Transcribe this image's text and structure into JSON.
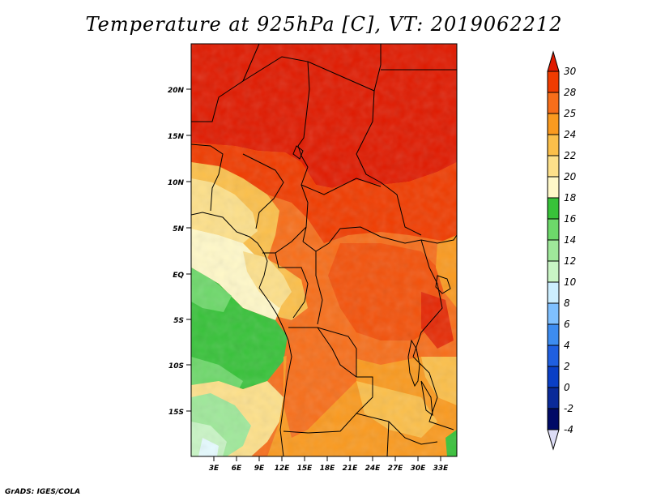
{
  "title": "Temperature at 925hPa [C], VT: 2019062212",
  "credit": "GrADS: IGES/COLA",
  "map": {
    "lat_labels": [
      "20N",
      "15N",
      "10N",
      "5N",
      "EQ",
      "5S",
      "10S",
      "15S"
    ],
    "lon_labels": [
      "3E",
      "6E",
      "9E",
      "12E",
      "15E",
      "18E",
      "21E",
      "24E",
      "27E",
      "30E",
      "33E"
    ]
  },
  "colorbar": {
    "levels": [
      "30",
      "28",
      "25",
      "24",
      "22",
      "20",
      "18",
      "16",
      "14",
      "12",
      "10",
      "8",
      "6",
      "4",
      "2",
      "0",
      "-2",
      "-4"
    ],
    "colors": [
      "#e01a00",
      "#f03c00",
      "#f76e1a",
      "#fa9a1f",
      "#fbbf4a",
      "#fde08a",
      "#fff8c8",
      "#38c23a",
      "#6dd86a",
      "#9fe89a",
      "#c9f5c5",
      "#cceeff",
      "#7fc0ff",
      "#3d8cf0",
      "#1f5fe0",
      "#0a3fc6",
      "#0a2a99",
      "#000a66",
      "#dcdcf5"
    ]
  }
}
